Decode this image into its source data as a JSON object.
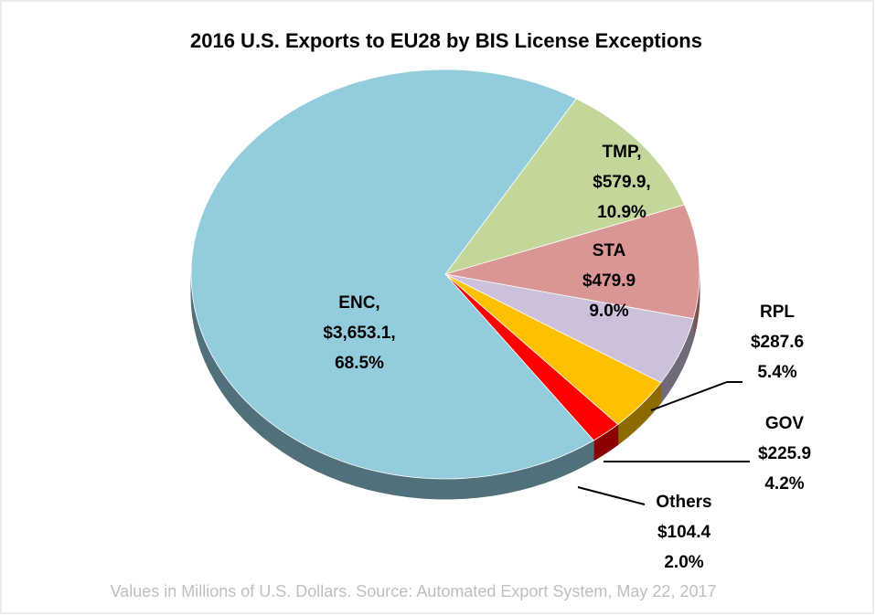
{
  "chart_data": {
    "type": "pie3d",
    "title": "2016 U.S. Exports to EU28 by BIS License Exceptions",
    "categories": [
      "ENC,",
      "TMP,",
      "STA",
      "RPL",
      "GOV",
      "Others"
    ],
    "values": [
      3653.1,
      579.9,
      479.9,
      287.6,
      225.9,
      104.4
    ],
    "value_labels": [
      "$3,653.1,",
      "$579.9,",
      "$479.9",
      "$287.6",
      "$225.9",
      "$104.4"
    ],
    "percent_labels": [
      "68.5%",
      "10.9%",
      "9.0%",
      "5.4%",
      "4.2%",
      "2.0%"
    ],
    "colors": [
      "#93cddd",
      "#c4d79b",
      "#da9694",
      "#ccc0da",
      "#ffc000",
      "#ff0000"
    ],
    "note": "Values in Millions of U.S. Dollars.  Source: Automated Export System, May 22, 2017"
  }
}
